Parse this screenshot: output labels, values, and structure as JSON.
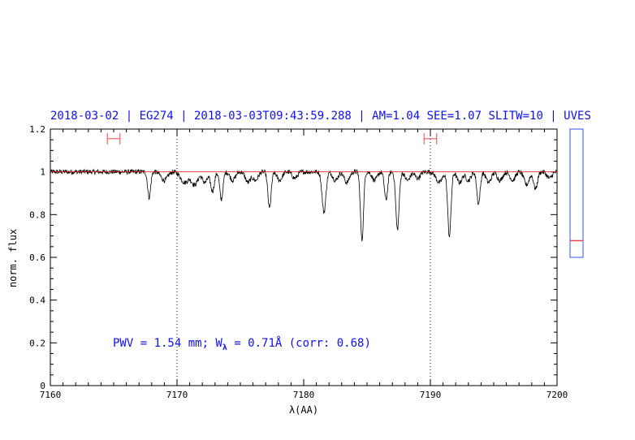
{
  "title": "2018-03-02 | EG274 | 2018-03-03T09:43:59.288 | AM=1.04 SEE=1.07 SLITW=10 | UVES",
  "annotation": {
    "prefix": "PWV = 1.54 mm; W",
    "subscript": "λ",
    "suffix": " = 0.71Å (corr: 0.68)"
  },
  "colors": {
    "spectrum": "#000000",
    "continuum": "#dd2222",
    "text": "#1010ee",
    "marker": "#ee4444",
    "indicator_box": "#3355ee"
  },
  "chart_data": {
    "type": "line",
    "xlabel": "λ(AA)",
    "ylabel": "norm. flux",
    "xlim": [
      7160,
      7200
    ],
    "ylim": [
      0,
      1.2
    ],
    "x_ticks": [
      7160,
      7170,
      7180,
      7190,
      7200
    ],
    "x_tick_labels": [
      "7160",
      "7170",
      "7180",
      "7190",
      "7200"
    ],
    "y_ticks": [
      0,
      0.2,
      0.4,
      0.6,
      0.8,
      1,
      1.2
    ],
    "y_tick_labels": [
      "0",
      "0.2",
      "0.4",
      "0.6",
      "0.8",
      "1",
      "1.2"
    ],
    "vertical_dotted_lines": [
      7170,
      7190
    ],
    "continuum_level": 1.0,
    "intervals": [
      [
        7164.5,
        7165.5
      ],
      [
        7189.5,
        7190.5
      ]
    ],
    "interval_y": 1.155,
    "absorption_lines": [
      {
        "center": 7167.8,
        "depth": 0.12,
        "width": 0.12
      },
      {
        "center": 7169.0,
        "depth": 0.04,
        "width": 0.25
      },
      {
        "center": 7170.6,
        "depth": 0.05,
        "width": 0.3
      },
      {
        "center": 7171.4,
        "depth": 0.06,
        "width": 0.25
      },
      {
        "center": 7172.2,
        "depth": 0.05,
        "width": 0.2
      },
      {
        "center": 7172.8,
        "depth": 0.09,
        "width": 0.15
      },
      {
        "center": 7173.5,
        "depth": 0.13,
        "width": 0.13
      },
      {
        "center": 7174.4,
        "depth": 0.04,
        "width": 0.2
      },
      {
        "center": 7175.6,
        "depth": 0.05,
        "width": 0.2
      },
      {
        "center": 7176.2,
        "depth": 0.04,
        "width": 0.2
      },
      {
        "center": 7177.3,
        "depth": 0.17,
        "width": 0.13
      },
      {
        "center": 7178.1,
        "depth": 0.04,
        "width": 0.2
      },
      {
        "center": 7179.3,
        "depth": 0.03,
        "width": 0.2
      },
      {
        "center": 7181.6,
        "depth": 0.19,
        "width": 0.15
      },
      {
        "center": 7182.5,
        "depth": 0.04,
        "width": 0.2
      },
      {
        "center": 7183.4,
        "depth": 0.05,
        "width": 0.2
      },
      {
        "center": 7184.6,
        "depth": 0.32,
        "width": 0.12
      },
      {
        "center": 7185.6,
        "depth": 0.04,
        "width": 0.2
      },
      {
        "center": 7186.5,
        "depth": 0.13,
        "width": 0.13
      },
      {
        "center": 7187.4,
        "depth": 0.27,
        "width": 0.13
      },
      {
        "center": 7188.2,
        "depth": 0.04,
        "width": 0.2
      },
      {
        "center": 7189.0,
        "depth": 0.03,
        "width": 0.2
      },
      {
        "center": 7190.7,
        "depth": 0.05,
        "width": 0.25
      },
      {
        "center": 7191.5,
        "depth": 0.3,
        "width": 0.13
      },
      {
        "center": 7192.3,
        "depth": 0.05,
        "width": 0.2
      },
      {
        "center": 7193.0,
        "depth": 0.04,
        "width": 0.2
      },
      {
        "center": 7193.8,
        "depth": 0.15,
        "width": 0.13
      },
      {
        "center": 7194.6,
        "depth": 0.05,
        "width": 0.2
      },
      {
        "center": 7195.5,
        "depth": 0.04,
        "width": 0.2
      },
      {
        "center": 7196.5,
        "depth": 0.04,
        "width": 0.2
      },
      {
        "center": 7197.6,
        "depth": 0.06,
        "width": 0.2
      },
      {
        "center": 7198.3,
        "depth": 0.08,
        "width": 0.15
      },
      {
        "center": 7199.4,
        "depth": 0.03,
        "width": 0.2
      }
    ],
    "indicator": {
      "ylim": [
        0,
        1
      ],
      "marker_value": 0.13
    },
    "grid": false
  }
}
